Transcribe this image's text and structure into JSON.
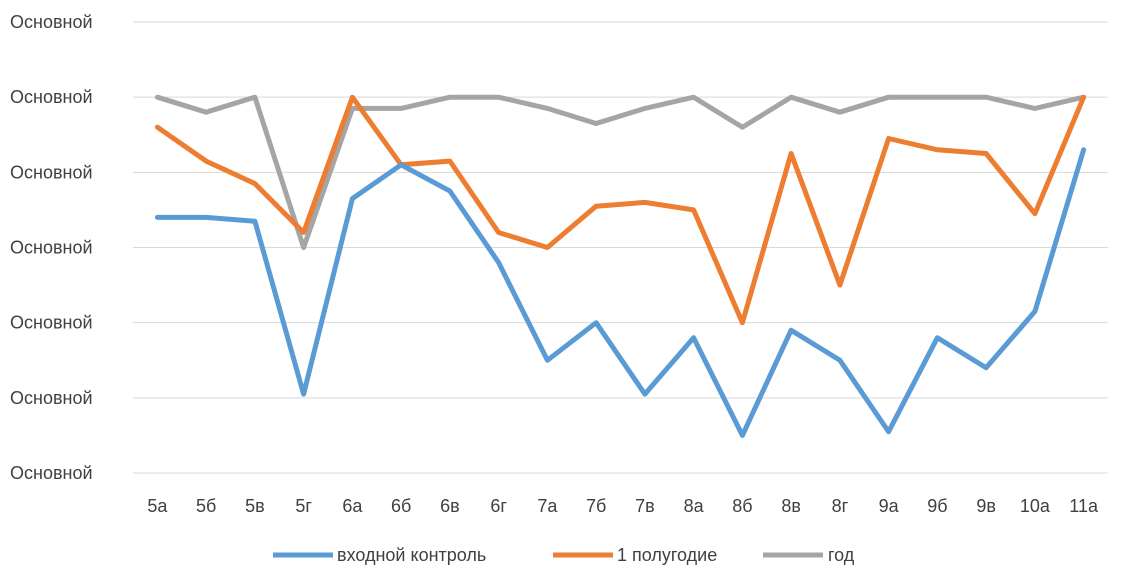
{
  "chart_data": {
    "type": "line",
    "categories": [
      "5а",
      "5б",
      "5в",
      "5г",
      "6а",
      "6б",
      "6в",
      "6г",
      "7а",
      "7б",
      "7в",
      "8а",
      "8б",
      "8в",
      "8г",
      "9а",
      "9б",
      "9в",
      "10а",
      "11а"
    ],
    "y_tick_labels": [
      "Основной",
      "Основной",
      "Основной",
      "Основной",
      "Основной",
      "Основной",
      "Основной"
    ],
    "ylim": [
      0,
      6
    ],
    "grid": true,
    "legend_position": "bottom",
    "series": [
      {
        "name": "входной контроль",
        "color": "#5B9BD5",
        "values": [
          3.4,
          3.4,
          3.35,
          1.05,
          3.65,
          4.1,
          3.75,
          2.8,
          1.5,
          2.0,
          1.05,
          1.8,
          0.5,
          1.9,
          1.5,
          0.55,
          1.8,
          1.4,
          2.15,
          4.3
        ]
      },
      {
        "name": "1 полугодие",
        "color": "#ED7D31",
        "values": [
          4.6,
          4.15,
          3.85,
          3.2,
          5.0,
          4.1,
          4.15,
          3.2,
          3.0,
          3.55,
          3.6,
          3.5,
          2.0,
          4.25,
          2.5,
          4.45,
          4.3,
          4.25,
          3.45,
          5.0
        ]
      },
      {
        "name": "год",
        "color": "#A5A5A5",
        "values": [
          5.0,
          4.8,
          5.0,
          3.0,
          4.85,
          4.85,
          5.0,
          5.0,
          4.85,
          4.65,
          4.85,
          5.0,
          4.6,
          5.0,
          4.8,
          5.0,
          5.0,
          5.0,
          4.85,
          5.0
        ]
      }
    ]
  }
}
